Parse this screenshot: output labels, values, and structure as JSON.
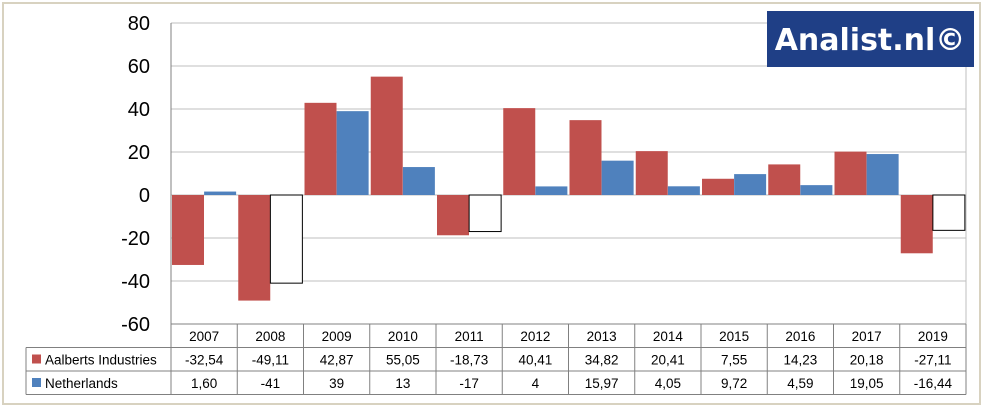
{
  "logo": {
    "text": "Analist.nl©",
    "background": "#1f3f86"
  },
  "colors": {
    "aalberts": "#c0504d",
    "netherlands": "#4f81bd",
    "grid": "#bfbfbf",
    "negative_fill": "#ffffff"
  },
  "chart_data": {
    "type": "bar",
    "categories": [
      "2007",
      "2008",
      "2009",
      "2010",
      "2011",
      "2012",
      "2013",
      "2014",
      "2015",
      "2016",
      "2017",
      "2019"
    ],
    "ylim": [
      -60,
      80
    ],
    "yticks": [
      "80",
      "60",
      "40",
      "20",
      "0",
      "-20",
      "-40",
      "-60"
    ],
    "grid": true,
    "legend": "data table below chart",
    "series": [
      {
        "name": "Aalberts Industries",
        "color": "#c0504d",
        "values": [
          -32.54,
          -49.11,
          42.87,
          55.05,
          -18.73,
          40.41,
          34.82,
          20.41,
          7.55,
          14.23,
          20.18,
          -27.11
        ],
        "labels": [
          "-32,54",
          "-49,11",
          "42,87",
          "55,05",
          "-18,73",
          "40,41",
          "34,82",
          "20,41",
          "7,55",
          "14,23",
          "20,18",
          "-27,11"
        ]
      },
      {
        "name": "Netherlands",
        "color": "#4f81bd",
        "negative_fill": "#ffffff",
        "values": [
          1.6,
          -41,
          39,
          13,
          -17,
          4,
          15.97,
          4.05,
          9.72,
          4.59,
          19.05,
          -16.44
        ],
        "labels": [
          "1,60",
          "-41",
          "39",
          "13",
          "-17",
          "4",
          "15,97",
          "4,05",
          "9,72",
          "4,59",
          "19,05",
          "-16,44"
        ]
      }
    ]
  }
}
